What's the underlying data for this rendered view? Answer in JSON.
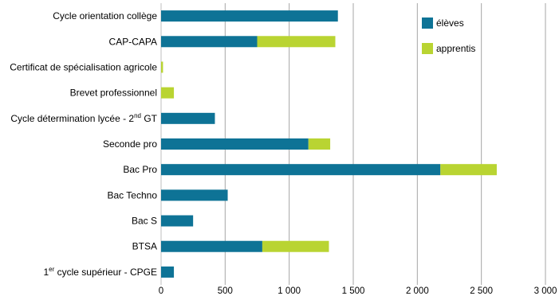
{
  "chart_data": {
    "type": "bar",
    "orientation": "horizontal",
    "stacked": true,
    "categories": [
      {
        "text": "Cycle orientation collège",
        "sup": "",
        "suffix": ""
      },
      {
        "text": "CAP-CAPA",
        "sup": "",
        "suffix": ""
      },
      {
        "text": "Certificat de spécialisation agricole",
        "sup": "",
        "suffix": ""
      },
      {
        "text": "Brevet professionnel",
        "sup": "",
        "suffix": ""
      },
      {
        "text": "Cycle détermination lycée - 2",
        "sup": "nd",
        "suffix": " GT"
      },
      {
        "text": "Seconde pro",
        "sup": "",
        "suffix": ""
      },
      {
        "text": "Bac Pro",
        "sup": "",
        "suffix": ""
      },
      {
        "text": "Bac Techno",
        "sup": "",
        "suffix": ""
      },
      {
        "text": "Bac S",
        "sup": "",
        "suffix": ""
      },
      {
        "text": "BTSA",
        "sup": "",
        "suffix": ""
      },
      {
        "text": "1",
        "sup": "er",
        "suffix": "  cycle supérieur - CPGE"
      }
    ],
    "series": [
      {
        "name": "élèves",
        "color": "#0e7396",
        "values": [
          1380,
          750,
          0,
          0,
          420,
          1150,
          2180,
          520,
          250,
          790,
          100
        ]
      },
      {
        "name": "apprentis",
        "color": "#b9d432",
        "values": [
          0,
          610,
          15,
          100,
          0,
          170,
          440,
          0,
          0,
          520,
          0
        ]
      }
    ],
    "xlim": [
      0,
      3000
    ],
    "xticks": [
      0,
      500,
      1000,
      1500,
      2000,
      2500,
      3000
    ],
    "xtick_labels": [
      "0",
      "500",
      "1 000",
      "1 500",
      "2 000",
      "2 500",
      "3 000"
    ],
    "grid": "vertical",
    "legend": "top-right",
    "gridline_color": "#a6a6a6"
  }
}
